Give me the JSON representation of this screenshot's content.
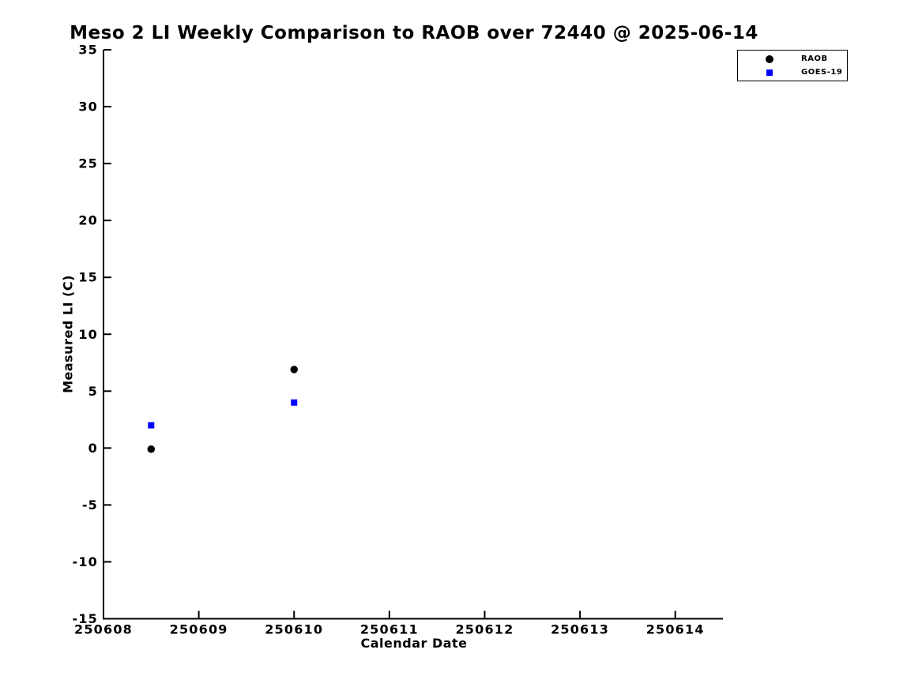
{
  "chart_data": {
    "type": "scatter",
    "title": "Meso 2 LI Weekly Comparison to RAOB over 72440 @ 2025-06-14",
    "xlabel": "Calendar Date",
    "ylabel": "Measured LI (C)",
    "xlim": [
      250608,
      250614.5
    ],
    "ylim": [
      -15,
      35
    ],
    "xticks": [
      250608,
      250609,
      250610,
      250611,
      250612,
      250613,
      250614
    ],
    "yticks": [
      -15,
      -10,
      -5,
      0,
      5,
      10,
      15,
      20,
      25,
      30,
      35
    ],
    "grid": false,
    "background": "#ffffff",
    "axis_color": "#000000",
    "legend": {
      "position": "top-right",
      "entries": [
        {
          "label": "RAOB",
          "marker": "circle",
          "color": "#000000"
        },
        {
          "label": "GOES-19",
          "marker": "square",
          "color": "#0000ff"
        }
      ]
    },
    "series": [
      {
        "name": "RAOB",
        "marker": "circle",
        "color": "#000000",
        "marker_size": 9.5,
        "points": [
          [
            250608.5,
            -0.1
          ],
          [
            250610.0,
            6.9
          ]
        ]
      },
      {
        "name": "GOES-19",
        "marker": "square",
        "color": "#0000ff",
        "marker_size": 8,
        "points": [
          [
            250608.5,
            2.0
          ],
          [
            250610.0,
            4.0
          ]
        ]
      }
    ]
  }
}
